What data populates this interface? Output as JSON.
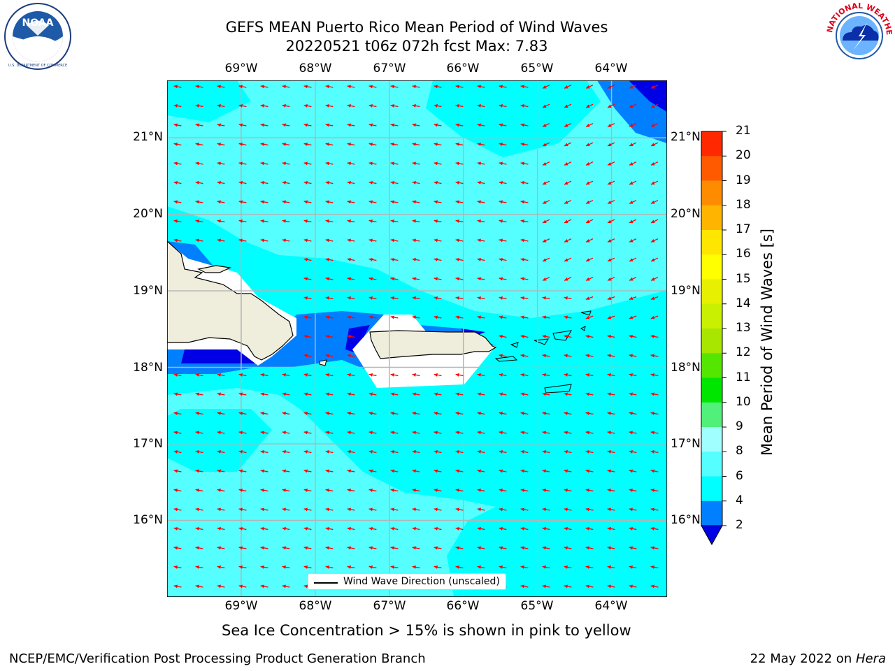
{
  "title": {
    "line1": "GEFS MEAN Puerto Rico Mean Period of Wind Waves",
    "line2": "20220521 t06z 072h fcst   Max: 7.83"
  },
  "logos": {
    "left": {
      "name": "NOAA",
      "ring_text": "NATIONAL OCEANIC AND ATMOSPHERIC ADMINISTRATION · U.S. DEPARTMENT OF COMMERCE"
    },
    "right": {
      "name": "NATIONAL WEATHER SERVICE"
    }
  },
  "map": {
    "lon_ticks": [
      "69°W",
      "68°W",
      "67°W",
      "66°W",
      "65°W",
      "64°W"
    ],
    "lat_ticks": [
      "21°N",
      "20°N",
      "19°N",
      "18°N",
      "17°N",
      "16°N"
    ],
    "lon_values": [
      -69,
      -68,
      -67,
      -66,
      -65,
      -64
    ],
    "lat_values": [
      21,
      20,
      19,
      18,
      17,
      16
    ],
    "extent": {
      "lon": [
        -70.0,
        -63.25
      ],
      "lat": [
        15.0,
        21.75
      ]
    },
    "wave_direction_degrees_approx": 280,
    "legend": "Wind Wave Direction (unscaled)",
    "colors": {
      "ocean_4_6": "#00ffff",
      "ocean_6_8": "#55ffff",
      "ocean_2_4": "#0080ff",
      "below_2": "#0000e6",
      "land": "#efeddb",
      "arrow": "#ff0000"
    }
  },
  "colorbar": {
    "label": "Mean Period of Wind Waves [s]",
    "ticks": [
      "2",
      "4",
      "6",
      "8",
      "9",
      "10",
      "11",
      "12",
      "13",
      "14",
      "15",
      "16",
      "17",
      "18",
      "19",
      "20",
      "21"
    ],
    "colors": [
      "#0080ff",
      "#00ffff",
      "#55ffff",
      "#a0ffff",
      "#50f07a",
      "#00e600",
      "#55e600",
      "#a8e600",
      "#c8f000",
      "#e6f000",
      "#ffff00",
      "#ffe600",
      "#ffb400",
      "#ff8c00",
      "#ff5a00",
      "#ff2800"
    ],
    "under_color": "#0000e6"
  },
  "note": "Sea Ice Concentration > 15% is shown in pink to yellow",
  "footer": {
    "left": "NCEP/EMC/Verification Post Processing Product Generation Branch",
    "right_prefix": "22 May 2022 on ",
    "right_host": "Hera"
  }
}
